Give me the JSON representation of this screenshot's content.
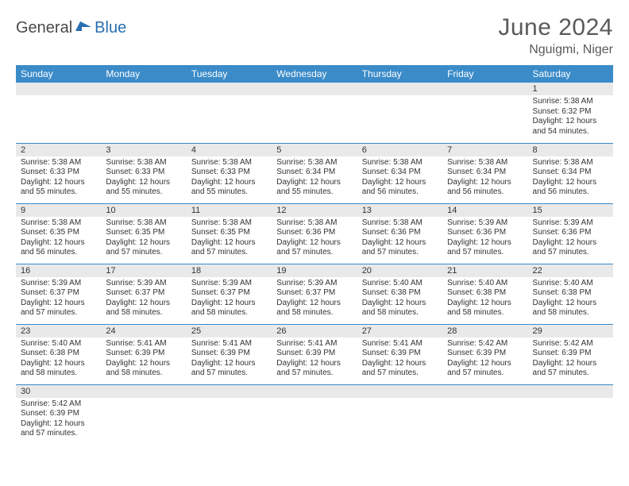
{
  "logo": {
    "dark": "General",
    "blue": "Blue"
  },
  "title": "June 2024",
  "location": "Nguigmi, Niger",
  "colors": {
    "header_bg": "#3b8bc9",
    "header_fg": "#ffffff",
    "daynum_bg": "#e9e9e9",
    "border": "#3b8bc9",
    "text": "#333333",
    "title_text": "#5a5a5a",
    "logo_blue": "#2a6fb0"
  },
  "typography": {
    "title_fontsize": 30,
    "location_fontsize": 16,
    "header_fontsize": 12,
    "daynum_fontsize": 11,
    "body_fontsize": 10
  },
  "weekdays": [
    "Sunday",
    "Monday",
    "Tuesday",
    "Wednesday",
    "Thursday",
    "Friday",
    "Saturday"
  ],
  "labels": {
    "sunrise": "Sunrise:",
    "sunset": "Sunset:",
    "daylight": "Daylight:"
  },
  "weeks": [
    [
      null,
      null,
      null,
      null,
      null,
      null,
      {
        "d": "1",
        "rise": "5:38 AM",
        "set": "6:32 PM",
        "dl": "12 hours and 54 minutes."
      }
    ],
    [
      {
        "d": "2",
        "rise": "5:38 AM",
        "set": "6:33 PM",
        "dl": "12 hours and 55 minutes."
      },
      {
        "d": "3",
        "rise": "5:38 AM",
        "set": "6:33 PM",
        "dl": "12 hours and 55 minutes."
      },
      {
        "d": "4",
        "rise": "5:38 AM",
        "set": "6:33 PM",
        "dl": "12 hours and 55 minutes."
      },
      {
        "d": "5",
        "rise": "5:38 AM",
        "set": "6:34 PM",
        "dl": "12 hours and 55 minutes."
      },
      {
        "d": "6",
        "rise": "5:38 AM",
        "set": "6:34 PM",
        "dl": "12 hours and 56 minutes."
      },
      {
        "d": "7",
        "rise": "5:38 AM",
        "set": "6:34 PM",
        "dl": "12 hours and 56 minutes."
      },
      {
        "d": "8",
        "rise": "5:38 AM",
        "set": "6:34 PM",
        "dl": "12 hours and 56 minutes."
      }
    ],
    [
      {
        "d": "9",
        "rise": "5:38 AM",
        "set": "6:35 PM",
        "dl": "12 hours and 56 minutes."
      },
      {
        "d": "10",
        "rise": "5:38 AM",
        "set": "6:35 PM",
        "dl": "12 hours and 57 minutes."
      },
      {
        "d": "11",
        "rise": "5:38 AM",
        "set": "6:35 PM",
        "dl": "12 hours and 57 minutes."
      },
      {
        "d": "12",
        "rise": "5:38 AM",
        "set": "6:36 PM",
        "dl": "12 hours and 57 minutes."
      },
      {
        "d": "13",
        "rise": "5:38 AM",
        "set": "6:36 PM",
        "dl": "12 hours and 57 minutes."
      },
      {
        "d": "14",
        "rise": "5:39 AM",
        "set": "6:36 PM",
        "dl": "12 hours and 57 minutes."
      },
      {
        "d": "15",
        "rise": "5:39 AM",
        "set": "6:36 PM",
        "dl": "12 hours and 57 minutes."
      }
    ],
    [
      {
        "d": "16",
        "rise": "5:39 AM",
        "set": "6:37 PM",
        "dl": "12 hours and 57 minutes."
      },
      {
        "d": "17",
        "rise": "5:39 AM",
        "set": "6:37 PM",
        "dl": "12 hours and 58 minutes."
      },
      {
        "d": "18",
        "rise": "5:39 AM",
        "set": "6:37 PM",
        "dl": "12 hours and 58 minutes."
      },
      {
        "d": "19",
        "rise": "5:39 AM",
        "set": "6:37 PM",
        "dl": "12 hours and 58 minutes."
      },
      {
        "d": "20",
        "rise": "5:40 AM",
        "set": "6:38 PM",
        "dl": "12 hours and 58 minutes."
      },
      {
        "d": "21",
        "rise": "5:40 AM",
        "set": "6:38 PM",
        "dl": "12 hours and 58 minutes."
      },
      {
        "d": "22",
        "rise": "5:40 AM",
        "set": "6:38 PM",
        "dl": "12 hours and 58 minutes."
      }
    ],
    [
      {
        "d": "23",
        "rise": "5:40 AM",
        "set": "6:38 PM",
        "dl": "12 hours and 58 minutes."
      },
      {
        "d": "24",
        "rise": "5:41 AM",
        "set": "6:39 PM",
        "dl": "12 hours and 58 minutes."
      },
      {
        "d": "25",
        "rise": "5:41 AM",
        "set": "6:39 PM",
        "dl": "12 hours and 57 minutes."
      },
      {
        "d": "26",
        "rise": "5:41 AM",
        "set": "6:39 PM",
        "dl": "12 hours and 57 minutes."
      },
      {
        "d": "27",
        "rise": "5:41 AM",
        "set": "6:39 PM",
        "dl": "12 hours and 57 minutes."
      },
      {
        "d": "28",
        "rise": "5:42 AM",
        "set": "6:39 PM",
        "dl": "12 hours and 57 minutes."
      },
      {
        "d": "29",
        "rise": "5:42 AM",
        "set": "6:39 PM",
        "dl": "12 hours and 57 minutes."
      }
    ],
    [
      {
        "d": "30",
        "rise": "5:42 AM",
        "set": "6:39 PM",
        "dl": "12 hours and 57 minutes."
      },
      null,
      null,
      null,
      null,
      null,
      null
    ]
  ]
}
